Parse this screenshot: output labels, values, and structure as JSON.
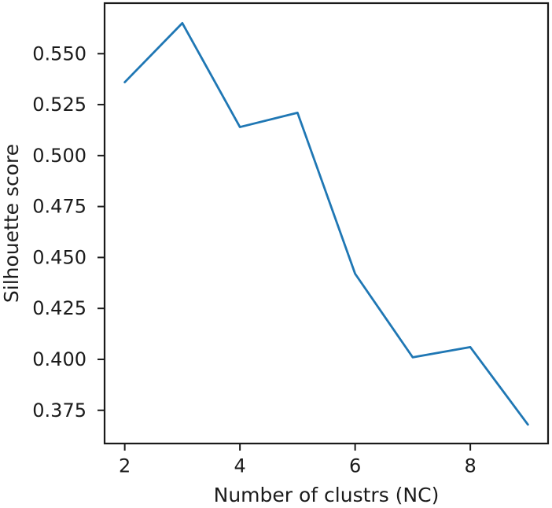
{
  "chart_data": {
    "type": "line",
    "title": "",
    "xlabel": "Number of clustrs (NC)",
    "ylabel": "Silhouette score",
    "x": [
      2,
      3,
      4,
      5,
      6,
      7,
      8,
      9
    ],
    "y": [
      0.536,
      0.565,
      0.514,
      0.521,
      0.442,
      0.401,
      0.406,
      0.368
    ],
    "xlim": [
      1.65,
      9.35
    ],
    "ylim": [
      0.3587,
      0.5748
    ],
    "xticks": [
      2,
      4,
      6,
      8
    ],
    "xtick_labels": [
      "2",
      "4",
      "6",
      "8"
    ],
    "yticks": [
      0.55,
      0.525,
      0.5,
      0.475,
      0.45,
      0.425,
      0.4,
      0.375
    ],
    "ytick_labels": [
      "0.550",
      "0.525",
      "0.500",
      "0.475",
      "0.450",
      "0.425",
      "0.400",
      "0.375"
    ],
    "line_color": "#1f77b4",
    "axis_color": "#1a1a1a",
    "grid": false,
    "legend": "none"
  }
}
